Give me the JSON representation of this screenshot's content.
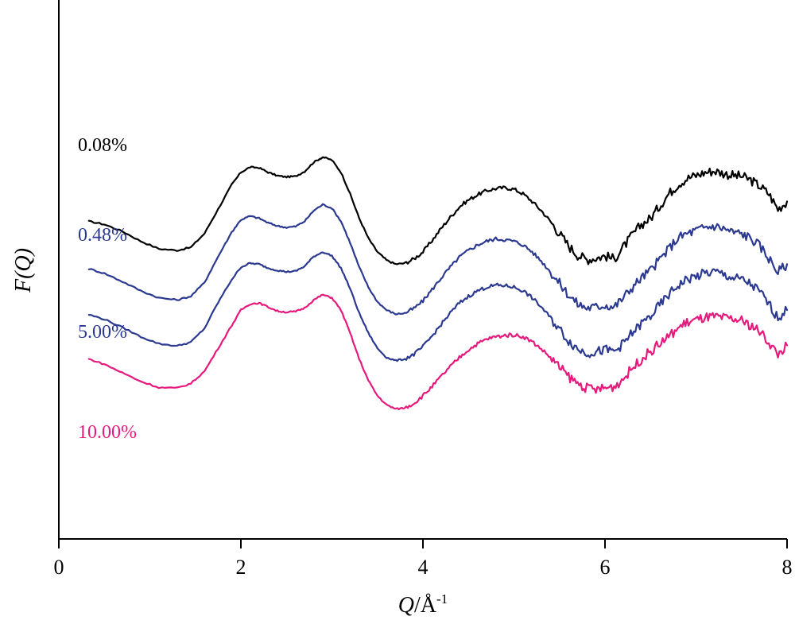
{
  "chart_data": {
    "type": "line",
    "xlabel_main": "Q",
    "xlabel_unit": "/Å",
    "xlabel_exp": "-1",
    "ylabel_func": "F(",
    "ylabel_var": "Q",
    "ylabel_close": ")",
    "xlim": [
      0,
      8
    ],
    "xticks": [
      "0",
      "2",
      "4",
      "6",
      "8"
    ],
    "xtick_values": [
      0,
      2,
      4,
      6,
      8
    ],
    "y_ticks_shown": false,
    "grid": false,
    "series": [
      {
        "name": "0.08%",
        "color": "#000000",
        "points": [
          [
            0.33,
            2.95
          ],
          [
            0.5,
            2.85
          ],
          [
            0.7,
            2.62
          ],
          [
            0.9,
            2.3
          ],
          [
            1.1,
            2.05
          ],
          [
            1.3,
            2.0
          ],
          [
            1.45,
            2.1
          ],
          [
            1.6,
            2.55
          ],
          [
            1.75,
            3.35
          ],
          [
            1.9,
            4.15
          ],
          [
            2.0,
            4.55
          ],
          [
            2.1,
            4.72
          ],
          [
            2.2,
            4.7
          ],
          [
            2.3,
            4.55
          ],
          [
            2.4,
            4.44
          ],
          [
            2.5,
            4.4
          ],
          [
            2.6,
            4.42
          ],
          [
            2.7,
            4.58
          ],
          [
            2.8,
            4.88
          ],
          [
            2.9,
            5.05
          ],
          [
            3.0,
            4.95
          ],
          [
            3.1,
            4.55
          ],
          [
            3.2,
            3.85
          ],
          [
            3.3,
            3.05
          ],
          [
            3.4,
            2.4
          ],
          [
            3.5,
            1.95
          ],
          [
            3.6,
            1.68
          ],
          [
            3.7,
            1.55
          ],
          [
            3.8,
            1.58
          ],
          [
            3.9,
            1.72
          ],
          [
            4.0,
            1.95
          ],
          [
            4.1,
            2.32
          ],
          [
            4.2,
            2.72
          ],
          [
            4.3,
            3.08
          ],
          [
            4.4,
            3.42
          ],
          [
            4.5,
            3.65
          ],
          [
            4.6,
            3.82
          ],
          [
            4.7,
            3.95
          ],
          [
            4.8,
            4.02
          ],
          [
            4.9,
            4.05
          ],
          [
            5.0,
            4.0
          ],
          [
            5.1,
            3.85
          ],
          [
            5.2,
            3.6
          ],
          [
            5.3,
            3.3
          ],
          [
            5.4,
            2.95
          ],
          [
            5.5,
            2.55
          ],
          [
            5.6,
            2.15
          ],
          [
            5.7,
            1.85
          ],
          [
            5.8,
            1.7
          ],
          [
            5.9,
            1.75
          ],
          [
            6.0,
            1.82
          ],
          [
            6.1,
            1.72
          ],
          [
            6.2,
            2.1
          ],
          [
            6.3,
            2.5
          ],
          [
            6.4,
            2.85
          ],
          [
            6.5,
            3.05
          ],
          [
            6.6,
            3.45
          ],
          [
            6.7,
            3.85
          ],
          [
            6.8,
            4.15
          ],
          [
            6.9,
            4.35
          ],
          [
            7.0,
            4.45
          ],
          [
            7.1,
            4.55
          ],
          [
            7.2,
            4.6
          ],
          [
            7.3,
            4.52
          ],
          [
            7.4,
            4.45
          ],
          [
            7.5,
            4.42
          ],
          [
            7.6,
            4.3
          ],
          [
            7.7,
            4.1
          ],
          [
            7.8,
            3.85
          ],
          [
            7.9,
            3.35
          ],
          [
            8.0,
            3.6
          ]
        ]
      },
      {
        "name": "0.48%",
        "color": "#2b3990",
        "points": [
          [
            0.33,
            1.4
          ],
          [
            0.5,
            1.25
          ],
          [
            0.7,
            0.98
          ],
          [
            0.9,
            0.68
          ],
          [
            1.1,
            0.45
          ],
          [
            1.3,
            0.38
          ],
          [
            1.45,
            0.5
          ],
          [
            1.6,
            0.95
          ],
          [
            1.75,
            1.8
          ],
          [
            1.9,
            2.6
          ],
          [
            2.0,
            3.0
          ],
          [
            2.1,
            3.12
          ],
          [
            2.2,
            3.05
          ],
          [
            2.3,
            2.9
          ],
          [
            2.4,
            2.8
          ],
          [
            2.5,
            2.75
          ],
          [
            2.6,
            2.78
          ],
          [
            2.7,
            2.95
          ],
          [
            2.8,
            3.3
          ],
          [
            2.9,
            3.5
          ],
          [
            3.0,
            3.38
          ],
          [
            3.1,
            2.95
          ],
          [
            3.2,
            2.25
          ],
          [
            3.3,
            1.45
          ],
          [
            3.4,
            0.8
          ],
          [
            3.5,
            0.32
          ],
          [
            3.6,
            0.05
          ],
          [
            3.7,
            -0.08
          ],
          [
            3.8,
            -0.05
          ],
          [
            3.9,
            0.1
          ],
          [
            4.0,
            0.35
          ],
          [
            4.1,
            0.72
          ],
          [
            4.2,
            1.1
          ],
          [
            4.3,
            1.45
          ],
          [
            4.4,
            1.78
          ],
          [
            4.5,
            2.0
          ],
          [
            4.6,
            2.18
          ],
          [
            4.7,
            2.3
          ],
          [
            4.8,
            2.38
          ],
          [
            4.9,
            2.35
          ],
          [
            5.0,
            2.3
          ],
          [
            5.1,
            2.18
          ],
          [
            5.2,
            1.95
          ],
          [
            5.3,
            1.65
          ],
          [
            5.4,
            1.3
          ],
          [
            5.5,
            0.92
          ],
          [
            5.6,
            0.55
          ],
          [
            5.7,
            0.25
          ],
          [
            5.8,
            0.12
          ],
          [
            5.9,
            0.15
          ],
          [
            6.0,
            0.22
          ],
          [
            6.1,
            0.15
          ],
          [
            6.2,
            0.45
          ],
          [
            6.3,
            0.8
          ],
          [
            6.4,
            1.1
          ],
          [
            6.5,
            1.35
          ],
          [
            6.6,
            1.7
          ],
          [
            6.7,
            2.05
          ],
          [
            6.8,
            2.4
          ],
          [
            6.9,
            2.55
          ],
          [
            7.0,
            2.65
          ],
          [
            7.1,
            2.75
          ],
          [
            7.2,
            2.8
          ],
          [
            7.3,
            2.72
          ],
          [
            7.4,
            2.6
          ],
          [
            7.5,
            2.55
          ],
          [
            7.6,
            2.4
          ],
          [
            7.7,
            2.15
          ],
          [
            7.8,
            1.75
          ],
          [
            7.9,
            1.3
          ],
          [
            8.0,
            1.55
          ]
        ]
      },
      {
        "name": "5.00%",
        "color": "#2b3990",
        "points": [
          [
            0.33,
            -0.1
          ],
          [
            0.5,
            -0.25
          ],
          [
            0.7,
            -0.52
          ],
          [
            0.9,
            -0.82
          ],
          [
            1.1,
            -1.05
          ],
          [
            1.3,
            -1.12
          ],
          [
            1.45,
            -1.0
          ],
          [
            1.6,
            -0.55
          ],
          [
            1.75,
            0.3
          ],
          [
            1.9,
            1.05
          ],
          [
            2.0,
            1.45
          ],
          [
            2.1,
            1.58
          ],
          [
            2.2,
            1.55
          ],
          [
            2.3,
            1.42
          ],
          [
            2.4,
            1.35
          ],
          [
            2.5,
            1.3
          ],
          [
            2.6,
            1.32
          ],
          [
            2.7,
            1.48
          ],
          [
            2.8,
            1.8
          ],
          [
            2.9,
            1.95
          ],
          [
            3.0,
            1.82
          ],
          [
            3.1,
            1.42
          ],
          [
            3.2,
            0.75
          ],
          [
            3.3,
            -0.05
          ],
          [
            3.4,
            -0.7
          ],
          [
            3.5,
            -1.2
          ],
          [
            3.6,
            -1.5
          ],
          [
            3.7,
            -1.6
          ],
          [
            3.8,
            -1.55
          ],
          [
            3.9,
            -1.4
          ],
          [
            4.0,
            -1.15
          ],
          [
            4.1,
            -0.8
          ],
          [
            4.2,
            -0.42
          ],
          [
            4.3,
            -0.05
          ],
          [
            4.4,
            0.28
          ],
          [
            4.5,
            0.5
          ],
          [
            4.6,
            0.68
          ],
          [
            4.7,
            0.8
          ],
          [
            4.8,
            0.86
          ],
          [
            4.9,
            0.85
          ],
          [
            5.0,
            0.8
          ],
          [
            5.1,
            0.68
          ],
          [
            5.2,
            0.45
          ],
          [
            5.3,
            0.15
          ],
          [
            5.4,
            -0.2
          ],
          [
            5.5,
            -0.58
          ],
          [
            5.6,
            -0.95
          ],
          [
            5.7,
            -1.22
          ],
          [
            5.8,
            -1.35
          ],
          [
            5.9,
            -1.32
          ],
          [
            6.0,
            -1.25
          ],
          [
            6.1,
            -1.3
          ],
          [
            6.2,
            -1.05
          ],
          [
            6.3,
            -0.7
          ],
          [
            6.4,
            -0.4
          ],
          [
            6.5,
            -0.15
          ],
          [
            6.6,
            0.2
          ],
          [
            6.7,
            0.55
          ],
          [
            6.8,
            0.85
          ],
          [
            6.9,
            1.05
          ],
          [
            7.0,
            1.15
          ],
          [
            7.1,
            1.25
          ],
          [
            7.2,
            1.3
          ],
          [
            7.3,
            1.22
          ],
          [
            7.4,
            1.1
          ],
          [
            7.5,
            1.05
          ],
          [
            7.6,
            0.9
          ],
          [
            7.7,
            0.65
          ],
          [
            7.8,
            0.25
          ],
          [
            7.9,
            -0.2
          ],
          [
            8.0,
            0.05
          ]
        ]
      },
      {
        "name": "10.00%",
        "color": "#e6197d",
        "points": [
          [
            0.33,
            -1.55
          ],
          [
            0.5,
            -1.72
          ],
          [
            0.7,
            -2.0
          ],
          [
            0.9,
            -2.28
          ],
          [
            1.1,
            -2.48
          ],
          [
            1.3,
            -2.5
          ],
          [
            1.45,
            -2.35
          ],
          [
            1.6,
            -1.95
          ],
          [
            1.75,
            -1.2
          ],
          [
            1.9,
            -0.45
          ],
          [
            2.0,
            0.05
          ],
          [
            2.1,
            0.25
          ],
          [
            2.2,
            0.28
          ],
          [
            2.3,
            0.15
          ],
          [
            2.4,
            0.02
          ],
          [
            2.5,
            -0.02
          ],
          [
            2.6,
            0.0
          ],
          [
            2.7,
            0.12
          ],
          [
            2.8,
            0.38
          ],
          [
            2.9,
            0.55
          ],
          [
            3.0,
            0.45
          ],
          [
            3.1,
            0.05
          ],
          [
            3.2,
            -0.7
          ],
          [
            3.3,
            -1.55
          ],
          [
            3.4,
            -2.25
          ],
          [
            3.5,
            -2.75
          ],
          [
            3.6,
            -3.05
          ],
          [
            3.7,
            -3.18
          ],
          [
            3.8,
            -3.15
          ],
          [
            3.9,
            -3.0
          ],
          [
            4.0,
            -2.75
          ],
          [
            4.1,
            -2.45
          ],
          [
            4.2,
            -2.12
          ],
          [
            4.3,
            -1.8
          ],
          [
            4.4,
            -1.5
          ],
          [
            4.5,
            -1.25
          ],
          [
            4.6,
            -1.05
          ],
          [
            4.7,
            -0.9
          ],
          [
            4.8,
            -0.82
          ],
          [
            4.9,
            -0.78
          ],
          [
            5.0,
            -0.76
          ],
          [
            5.1,
            -0.82
          ],
          [
            5.2,
            -0.98
          ],
          [
            5.3,
            -1.22
          ],
          [
            5.4,
            -1.5
          ],
          [
            5.5,
            -1.82
          ],
          [
            5.6,
            -2.12
          ],
          [
            5.7,
            -2.35
          ],
          [
            5.8,
            -2.5
          ],
          [
            5.9,
            -2.55
          ],
          [
            6.0,
            -2.5
          ],
          [
            6.1,
            -2.45
          ],
          [
            6.2,
            -2.2
          ],
          [
            6.3,
            -1.85
          ],
          [
            6.4,
            -1.55
          ],
          [
            6.5,
            -1.3
          ],
          [
            6.6,
            -1.05
          ],
          [
            6.7,
            -0.82
          ],
          [
            6.8,
            -0.55
          ],
          [
            6.9,
            -0.35
          ],
          [
            7.0,
            -0.28
          ],
          [
            7.1,
            -0.2
          ],
          [
            7.2,
            -0.18
          ],
          [
            7.3,
            -0.22
          ],
          [
            7.4,
            -0.25
          ],
          [
            7.5,
            -0.3
          ],
          [
            7.6,
            -0.45
          ],
          [
            7.7,
            -0.65
          ],
          [
            7.8,
            -1.0
          ],
          [
            7.9,
            -1.4
          ],
          [
            8.0,
            -1.1
          ]
        ]
      }
    ]
  }
}
